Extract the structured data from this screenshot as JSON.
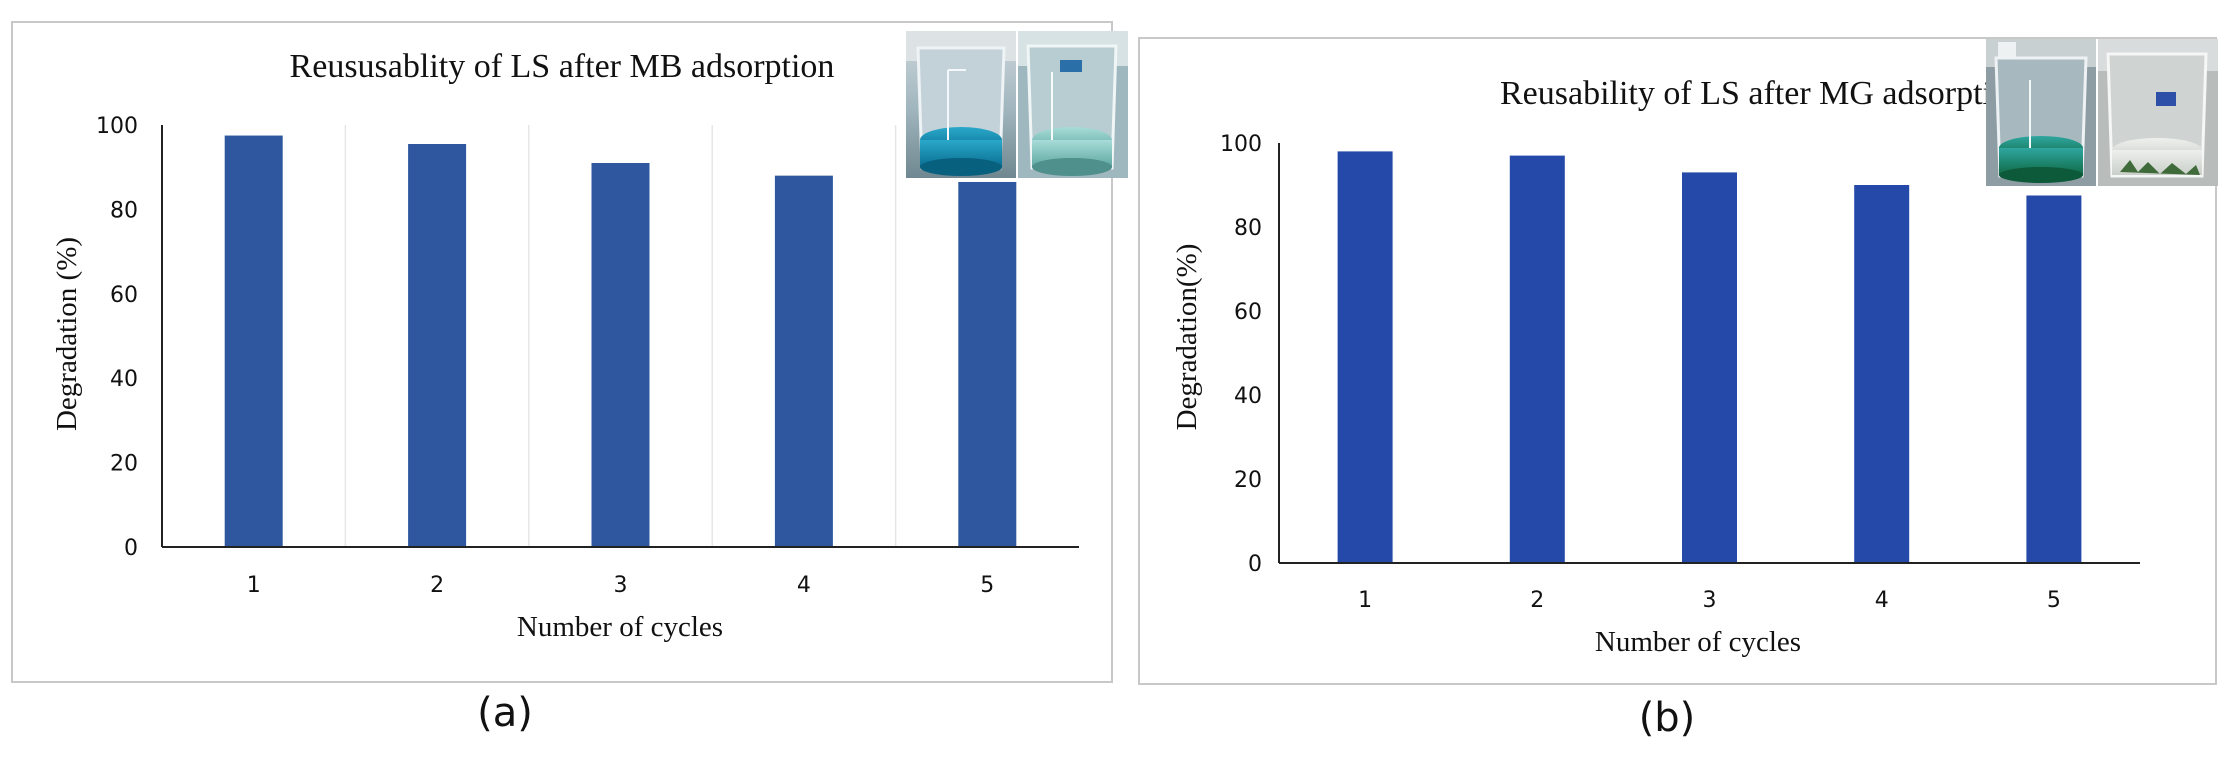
{
  "panels": [
    {
      "caption": "(a)",
      "chart_data": {
        "type": "bar",
        "title": "Reususablity of LS after MB adsorption",
        "xlabel": "Number of cycles",
        "ylabel": "Degradation (%)",
        "categories": [
          "1",
          "2",
          "3",
          "4",
          "5"
        ],
        "values": [
          97.5,
          95.5,
          91,
          88,
          86.5
        ],
        "ylim": [
          0,
          100
        ],
        "yticks": [
          0,
          20,
          40,
          60,
          80,
          100
        ],
        "grid": "vertical",
        "bar_color": "#2e57a0"
      },
      "inset_photos": [
        {
          "name": "beaker-blue-dye-photo",
          "dye": "blue"
        },
        {
          "name": "beaker-treated-photo",
          "dye": "light-blue"
        }
      ]
    },
    {
      "caption": "(b)",
      "chart_data": {
        "type": "bar",
        "title": "Reusability of LS after MG adsorption",
        "xlabel": "Number of cycles",
        "ylabel": "Degradation(%)",
        "categories": [
          "1",
          "2",
          "3",
          "4",
          "5"
        ],
        "values": [
          98,
          97,
          93,
          90,
          87.5
        ],
        "ylim": [
          0,
          100
        ],
        "yticks": [
          0,
          20,
          40,
          60,
          80,
          100
        ],
        "grid": "none",
        "bar_color": "#2549a8"
      },
      "inset_photos": [
        {
          "name": "beaker-green-dye-photo",
          "dye": "green"
        },
        {
          "name": "beaker-clear-photo",
          "dye": "clear"
        }
      ]
    }
  ]
}
